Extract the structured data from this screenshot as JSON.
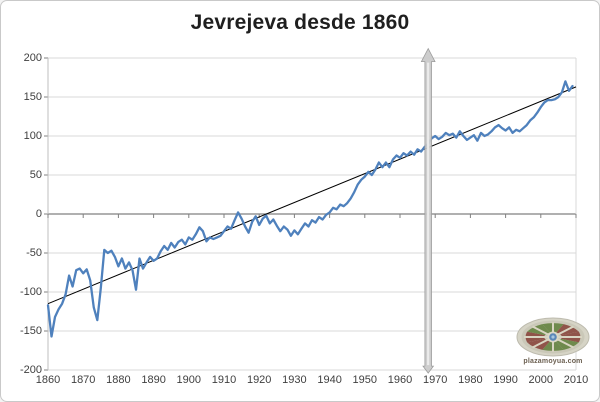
{
  "chart_data": {
    "type": "line",
    "title": "Jevrejeva desde 1860",
    "xlabel": "",
    "ylabel": "",
    "xlim": [
      1860,
      2010
    ],
    "ylim": [
      -200,
      200
    ],
    "grid": true,
    "legend": "none",
    "x_ticks": [
      1860,
      1870,
      1880,
      1890,
      1900,
      1910,
      1920,
      1930,
      1940,
      1950,
      1960,
      1970,
      1980,
      1990,
      2000,
      2010
    ],
    "y_ticks": [
      200,
      150,
      100,
      50,
      0,
      -50,
      -100,
      -150,
      -200
    ],
    "years_start": 1860,
    "years_end": 2009,
    "series": [
      {
        "name": "Jevrejeva",
        "color": "#4F81BD",
        "values": [
          -117,
          -157,
          -132,
          -122,
          -115,
          -103,
          -79,
          -93,
          -72,
          -70,
          -76,
          -71,
          -85,
          -120,
          -136,
          -95,
          -46,
          -50,
          -47,
          -55,
          -67,
          -57,
          -70,
          -62,
          -72,
          -97,
          -57,
          -70,
          -62,
          -55,
          -60,
          -57,
          -48,
          -41,
          -46,
          -37,
          -43,
          -36,
          -33,
          -39,
          -30,
          -33,
          -26,
          -17,
          -22,
          -35,
          -30,
          -32,
          -30,
          -28,
          -22,
          -16,
          -19,
          -8,
          2,
          -6,
          -16,
          -24,
          -10,
          -3,
          -14,
          -6,
          -2,
          -12,
          -7,
          -15,
          -22,
          -16,
          -20,
          -28,
          -21,
          -26,
          -19,
          -12,
          -16,
          -8,
          -11,
          -4,
          -7,
          -1,
          2,
          8,
          6,
          12,
          10,
          14,
          20,
          28,
          38,
          44,
          48,
          54,
          50,
          57,
          66,
          60,
          66,
          60,
          70,
          75,
          72,
          78,
          75,
          80,
          76,
          83,
          80,
          86,
          90,
          97,
          100,
          96,
          99,
          104,
          101,
          103,
          98,
          106,
          100,
          95,
          98,
          101,
          94,
          104,
          100,
          102,
          106,
          111,
          114,
          110,
          107,
          111,
          104,
          108,
          106,
          110,
          114,
          120,
          124,
          130,
          137,
          143,
          146,
          146,
          147,
          150,
          156,
          170,
          158,
          164
        ]
      }
    ],
    "trend_line": {
      "name": "linear-trend",
      "color": "#000000",
      "x": [
        1860,
        2010
      ],
      "values": [
        -115,
        163
      ]
    },
    "annotation_arrow": {
      "year": 1968,
      "value_from": -204,
      "value_to": 212,
      "fill": "#c9c9c9",
      "stroke": "#9c9c9c",
      "highlight": "#ebebeb"
    },
    "colors": {
      "grid": "#d9d9d9",
      "axis": "#808080",
      "axis_light": "#bfbfbf",
      "label": "#3f3f3f"
    }
  },
  "logo": {
    "caption": "plazamoyua.com"
  }
}
